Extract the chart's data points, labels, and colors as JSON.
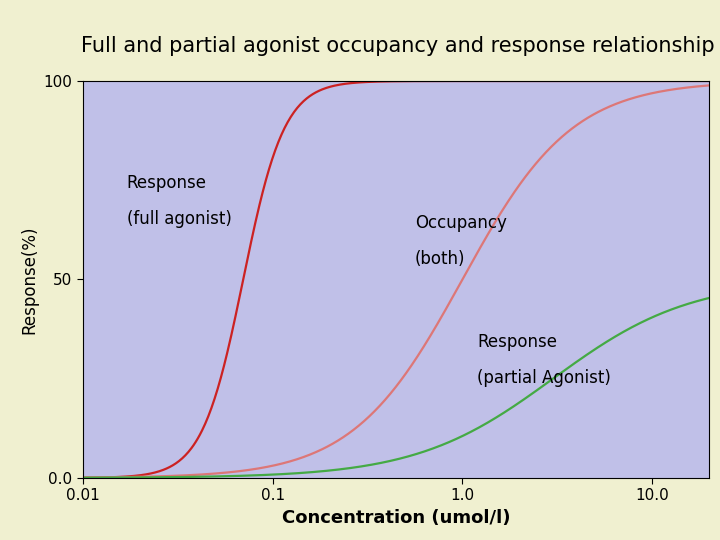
{
  "title": "Full and partial agonist occupancy and response relationship",
  "title_box_color": "#c8c87a",
  "plot_bg_color": "#c0c0e8",
  "outer_bg_color": "#f0f0d0",
  "left_strip_color": "#4a1a3a",
  "ylabel": "Response(%)",
  "xlabel": "Concentration (umol/l)",
  "ylim": [
    0,
    100
  ],
  "xlim_log": [
    -2,
    1.3
  ],
  "yticks": [
    0.0,
    50,
    100
  ],
  "xticks_vals": [
    0.01,
    0.1,
    1.0,
    10.0
  ],
  "xticks_labels": [
    "0.01",
    "0.1",
    "1.0",
    "10.0"
  ],
  "curve_full_agonist": {
    "ec50": 0.07,
    "hill": 4.0,
    "emax": 100,
    "color": "#cc2222",
    "label_line1": "Response",
    "label_line2": "(full agonist)"
  },
  "curve_occupancy": {
    "ec50": 1.0,
    "hill": 1.5,
    "emax": 100,
    "color": "#dd7777",
    "label_line1": "Occupancy",
    "label_line2": "(both)"
  },
  "curve_partial_agonist": {
    "ec50": 3.0,
    "hill": 1.2,
    "emax": 50,
    "color": "#44aa44",
    "label_line1": "Response",
    "label_line2": "(partial Agonist)"
  },
  "annotation_fontsize": 12,
  "axis_fontsize": 11,
  "title_fontsize": 15,
  "ylabel_fontsize": 12,
  "xlabel_fontsize": 13
}
